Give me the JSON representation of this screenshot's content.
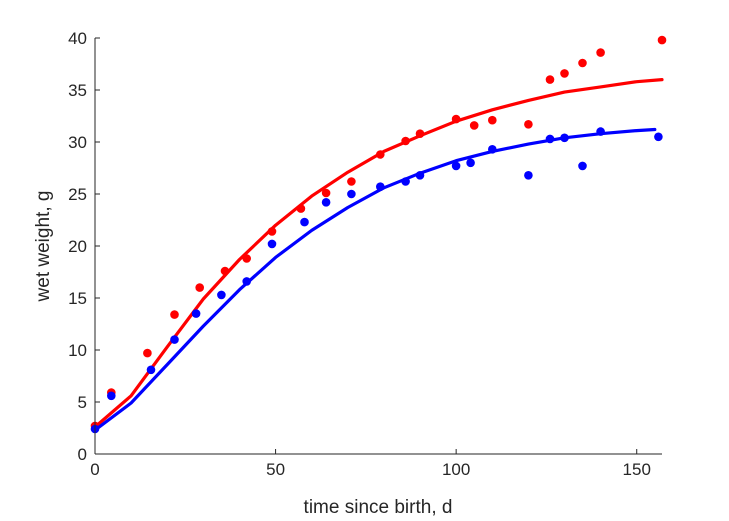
{
  "chart_data": {
    "type": "scatter",
    "title": "",
    "xlabel": "time since birth, d",
    "ylabel": "wet weight, g",
    "xlim": [
      0,
      157
    ],
    "ylim": [
      0,
      40
    ],
    "xticks": [
      0,
      50,
      100,
      150
    ],
    "yticks": [
      0,
      5,
      10,
      15,
      20,
      25,
      30,
      35,
      40
    ],
    "xtick_labels": [
      "0",
      "50",
      "100",
      "150"
    ],
    "ytick_labels": [
      "0",
      "5",
      "10",
      "15",
      "20",
      "25",
      "30",
      "35",
      "40"
    ],
    "grid": false,
    "legend": "none",
    "series": [
      {
        "color": "#ff0000",
        "points": [
          [
            0,
            2.7
          ],
          [
            4.5,
            5.9
          ],
          [
            14.5,
            9.7
          ],
          [
            22,
            13.4
          ],
          [
            29,
            16.0
          ],
          [
            36,
            17.6
          ],
          [
            42,
            18.8
          ],
          [
            49,
            21.4
          ],
          [
            57,
            23.6
          ],
          [
            64,
            25.1
          ],
          [
            71,
            26.2
          ],
          [
            79,
            28.8
          ],
          [
            86,
            30.1
          ],
          [
            90,
            30.8
          ],
          [
            100,
            32.2
          ],
          [
            105,
            31.6
          ],
          [
            110,
            32.1
          ],
          [
            120,
            31.7
          ],
          [
            126,
            36.0
          ],
          [
            130,
            36.6
          ],
          [
            135,
            37.6
          ],
          [
            140,
            38.6
          ],
          [
            157,
            39.8
          ]
        ],
        "curve": [
          [
            0,
            2.6
          ],
          [
            10,
            5.6
          ],
          [
            20,
            10.3
          ],
          [
            30,
            14.9
          ],
          [
            40,
            18.7
          ],
          [
            50,
            22.0
          ],
          [
            60,
            24.8
          ],
          [
            70,
            27.1
          ],
          [
            80,
            29.1
          ],
          [
            90,
            30.6
          ],
          [
            100,
            32.0
          ],
          [
            110,
            33.1
          ],
          [
            120,
            34.0
          ],
          [
            130,
            34.8
          ],
          [
            140,
            35.3
          ],
          [
            150,
            35.8
          ],
          [
            157,
            36.0
          ]
        ]
      },
      {
        "color": "#0000ff",
        "points": [
          [
            0,
            2.4
          ],
          [
            4.5,
            5.6
          ],
          [
            15.5,
            8.1
          ],
          [
            22,
            11.0
          ],
          [
            28,
            13.5
          ],
          [
            35,
            15.3
          ],
          [
            42,
            16.6
          ],
          [
            49,
            20.2
          ],
          [
            58,
            22.3
          ],
          [
            64,
            24.2
          ],
          [
            71,
            25.0
          ],
          [
            79,
            25.7
          ],
          [
            86,
            26.2
          ],
          [
            90,
            26.8
          ],
          [
            100,
            27.7
          ],
          [
            104,
            28.0
          ],
          [
            110,
            29.3
          ],
          [
            120,
            26.8
          ],
          [
            126,
            30.3
          ],
          [
            130,
            30.4
          ],
          [
            135,
            27.7
          ],
          [
            140,
            31.0
          ],
          [
            156,
            30.5
          ]
        ],
        "curve": [
          [
            0,
            2.3
          ],
          [
            10,
            4.9
          ],
          [
            20,
            8.6
          ],
          [
            30,
            12.3
          ],
          [
            40,
            15.8
          ],
          [
            50,
            18.9
          ],
          [
            60,
            21.5
          ],
          [
            70,
            23.7
          ],
          [
            80,
            25.6
          ],
          [
            90,
            27.0
          ],
          [
            100,
            28.2
          ],
          [
            110,
            29.1
          ],
          [
            120,
            29.8
          ],
          [
            130,
            30.4
          ],
          [
            140,
            30.8
          ],
          [
            150,
            31.1
          ],
          [
            155,
            31.2
          ]
        ]
      }
    ]
  }
}
